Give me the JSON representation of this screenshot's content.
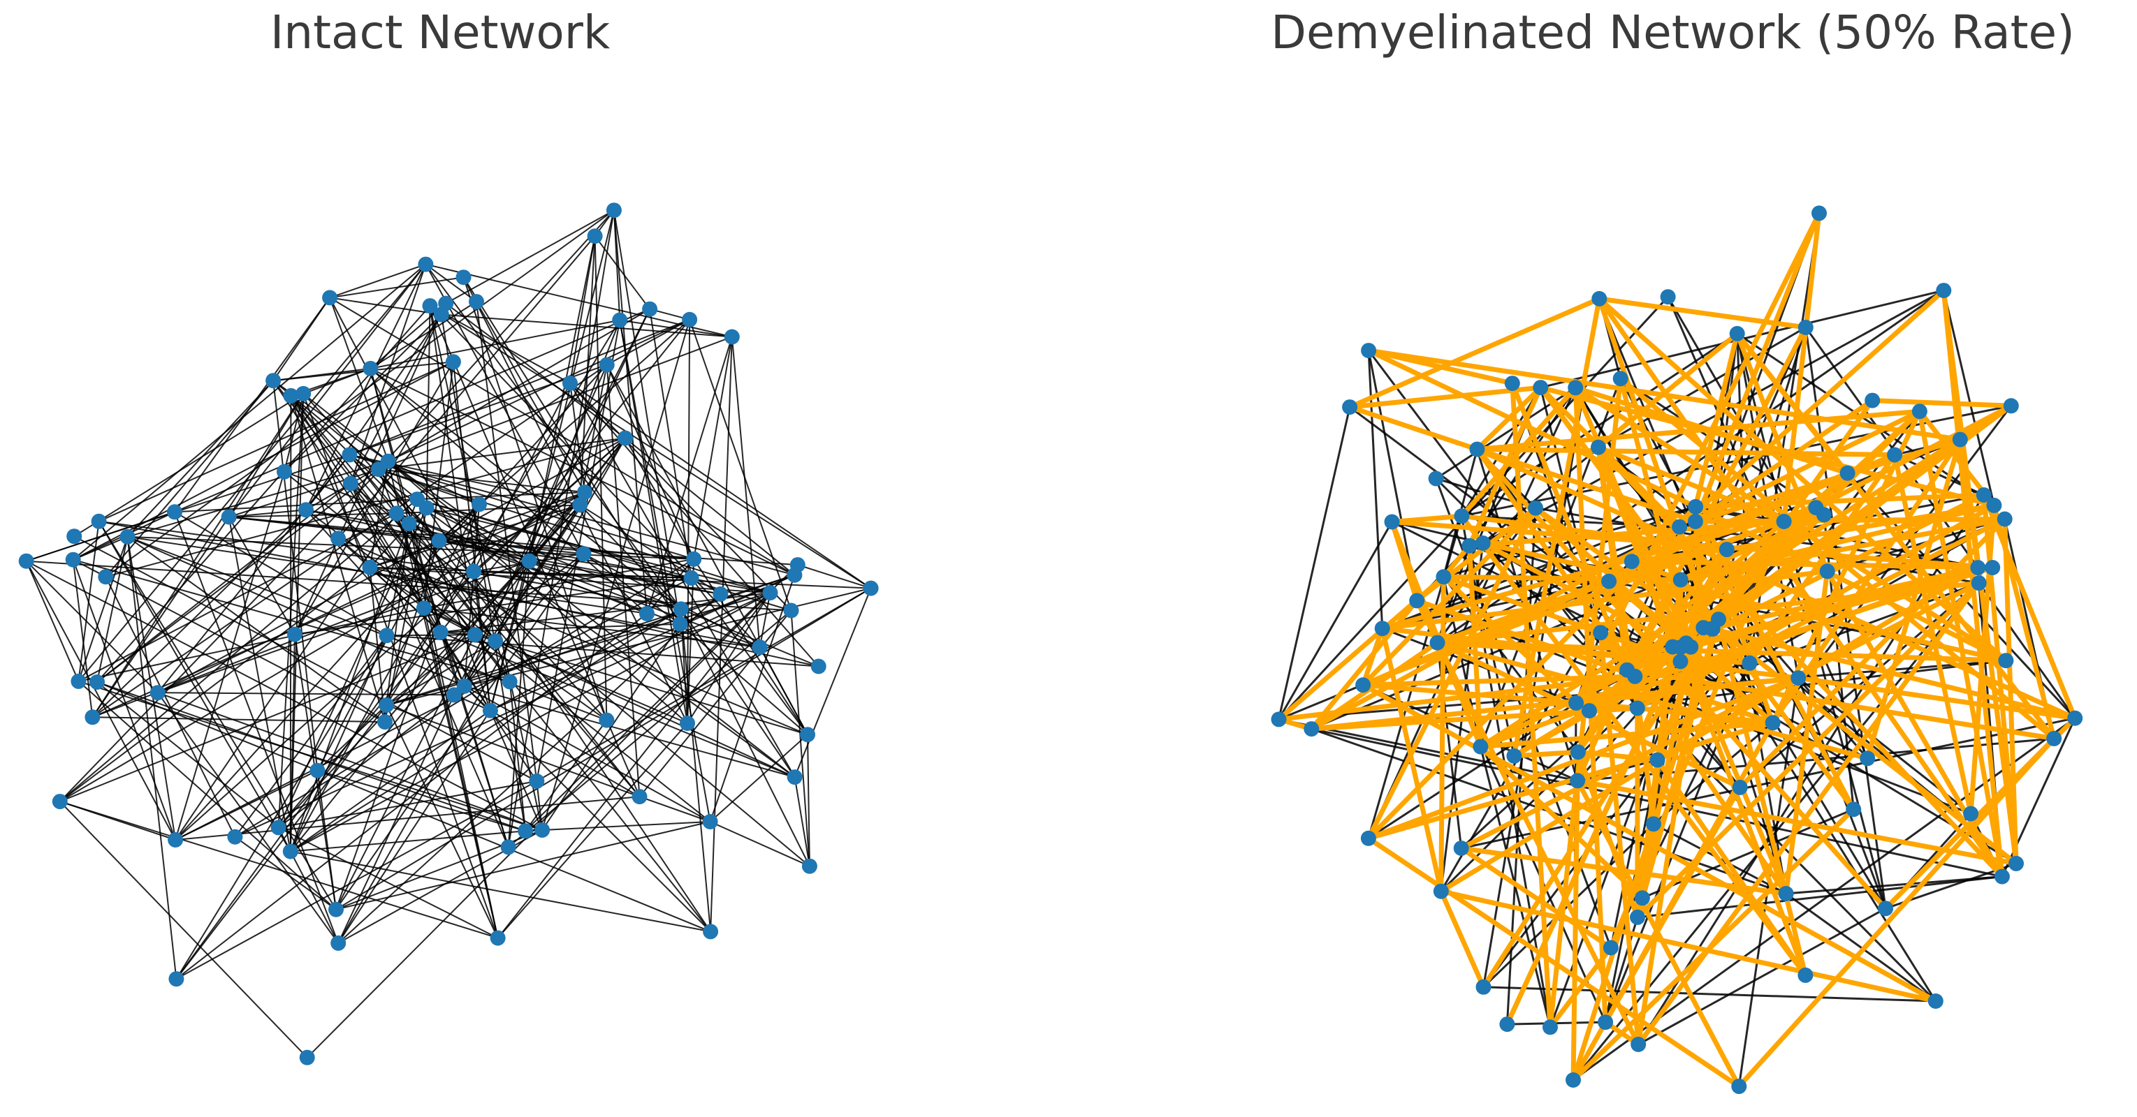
{
  "panels": [
    {
      "title": "Intact Network",
      "node_color": "#1f77b4",
      "edge_color": "#000000",
      "highlight_color": "#ffa500",
      "nodes": 100,
      "edge_count": 420,
      "highlighted_fraction": 0,
      "seed": 17
    },
    {
      "title": "Demyelinated Network (50% Rate)",
      "node_color": "#1f77b4",
      "edge_color": "#000000",
      "highlight_color": "#ffa500",
      "nodes": 100,
      "edge_count": 420,
      "highlighted_fraction": 0.5,
      "seed": 29
    }
  ]
}
